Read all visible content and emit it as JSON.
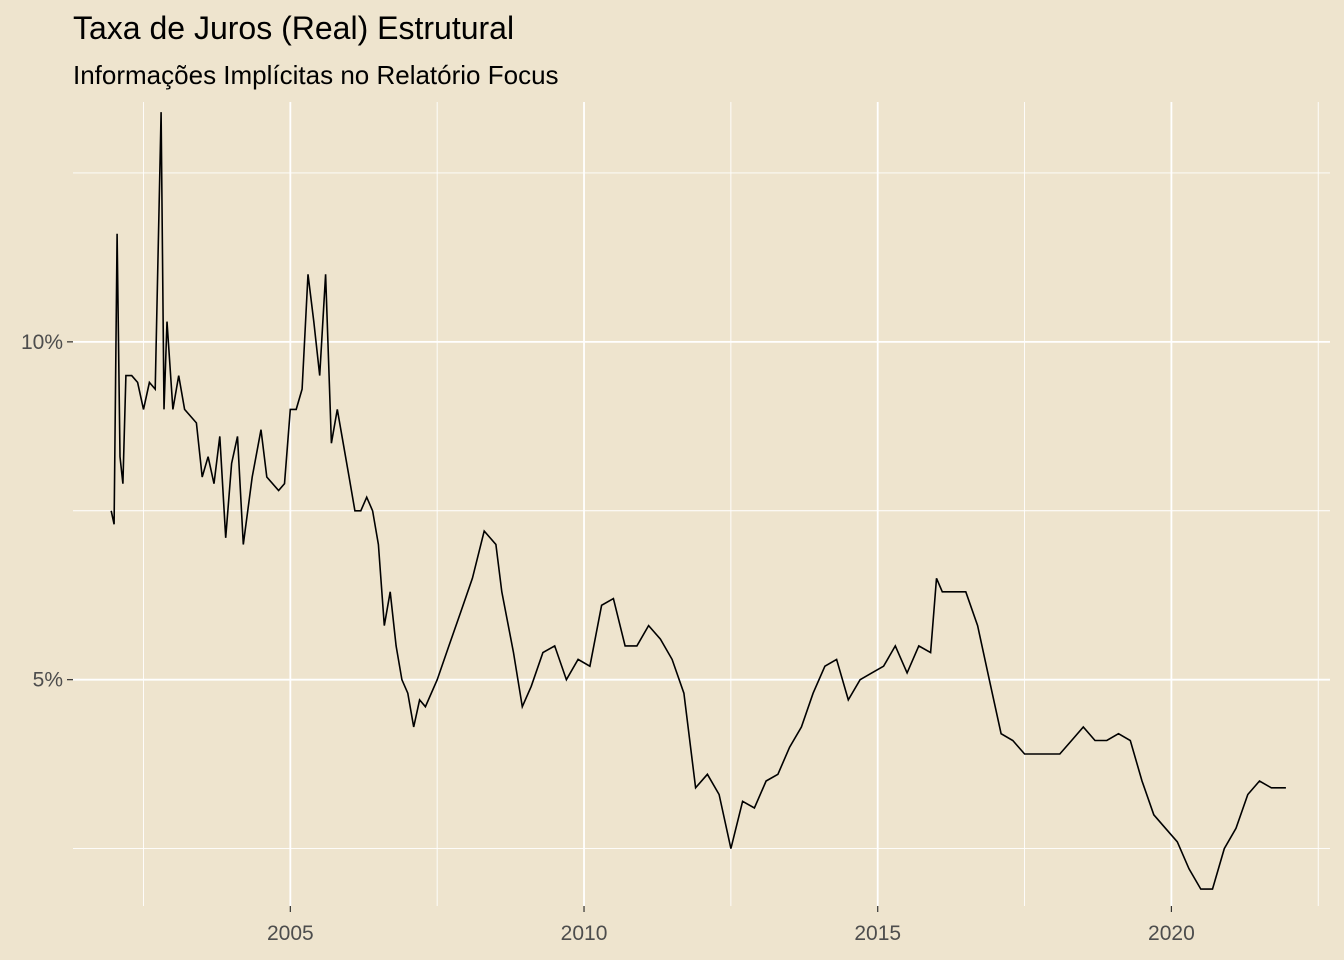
{
  "chart_data": {
    "type": "line",
    "title": "Taxa de Juros (Real) Estrutural",
    "subtitle": "Informações Implícitas no Relatório Focus",
    "xlabel": "",
    "ylabel": "",
    "x_ticks": [
      2005,
      2010,
      2015,
      2020
    ],
    "x_tick_labels": [
      "2005",
      "2010",
      "2015",
      "2020"
    ],
    "y_ticks": [
      5,
      10
    ],
    "y_tick_labels": [
      "5%",
      "10%"
    ],
    "xlim": [
      2001.3,
      2022.7
    ],
    "ylim": [
      1.65,
      13.55
    ],
    "grid": true,
    "legend": "none",
    "colors": {
      "background": "#EEE4CE",
      "grid": "#FFFFFF",
      "line": "#000000",
      "tick_text": "#4D4D4D"
    },
    "series": [
      {
        "x": [
          2001.95,
          2002.0,
          2002.05,
          2002.1,
          2002.15,
          2002.2,
          2002.3,
          2002.4,
          2002.5,
          2002.6,
          2002.7,
          2002.8,
          2002.85,
          2002.9,
          2003.0,
          2003.1,
          2003.2,
          2003.4,
          2003.5,
          2003.6,
          2003.7,
          2003.8,
          2003.9,
          2004.0,
          2004.1,
          2004.2,
          2004.35,
          2004.5,
          2004.6,
          2004.8,
          2004.9,
          2005.0,
          2005.1,
          2005.2,
          2005.3,
          2005.4,
          2005.5,
          2005.6,
          2005.7,
          2005.8,
          2005.9,
          2006.0,
          2006.1,
          2006.2,
          2006.3,
          2006.4,
          2006.5,
          2006.6,
          2006.7,
          2006.8,
          2006.9,
          2007.0,
          2007.1,
          2007.2,
          2007.3,
          2007.5,
          2007.7,
          2007.9,
          2008.1,
          2008.3,
          2008.5,
          2008.6,
          2008.8,
          2008.95,
          2009.1,
          2009.3,
          2009.5,
          2009.7,
          2009.9,
          2010.1,
          2010.3,
          2010.5,
          2010.7,
          2010.9,
          2011.1,
          2011.3,
          2011.5,
          2011.7,
          2011.9,
          2012.1,
          2012.3,
          2012.5,
          2012.7,
          2012.9,
          2013.1,
          2013.3,
          2013.5,
          2013.7,
          2013.9,
          2014.1,
          2014.3,
          2014.5,
          2014.7,
          2014.9,
          2015.1,
          2015.3,
          2015.5,
          2015.7,
          2015.9,
          2016.0,
          2016.1,
          2016.3,
          2016.5,
          2016.7,
          2016.9,
          2017.1,
          2017.3,
          2017.5,
          2017.7,
          2017.9,
          2018.1,
          2018.3,
          2018.5,
          2018.7,
          2018.9,
          2019.1,
          2019.3,
          2019.5,
          2019.7,
          2019.9,
          2020.1,
          2020.3,
          2020.5,
          2020.7,
          2020.9,
          2021.1,
          2021.3,
          2021.5,
          2021.7,
          2021.95
        ],
        "y": [
          7.5,
          7.3,
          11.6,
          8.3,
          7.9,
          9.5,
          9.5,
          9.4,
          9.0,
          9.4,
          9.3,
          13.4,
          9.0,
          10.3,
          9.0,
          9.5,
          9.0,
          8.8,
          8.0,
          8.3,
          7.9,
          8.6,
          7.1,
          8.2,
          8.6,
          7.0,
          8.0,
          8.7,
          8.0,
          7.8,
          7.9,
          9.0,
          9.0,
          9.3,
          11.0,
          10.3,
          9.5,
          11.0,
          8.5,
          9.0,
          8.5,
          8.0,
          7.5,
          7.5,
          7.7,
          7.5,
          7.0,
          5.8,
          6.3,
          5.5,
          5.0,
          4.8,
          4.3,
          4.7,
          4.6,
          5.0,
          5.5,
          6.0,
          6.5,
          7.2,
          7.0,
          6.3,
          5.4,
          4.6,
          4.9,
          5.4,
          5.5,
          5.0,
          5.3,
          5.2,
          6.1,
          6.2,
          5.5,
          5.5,
          5.8,
          5.6,
          5.3,
          4.8,
          3.4,
          3.6,
          3.3,
          2.5,
          3.2,
          3.1,
          3.5,
          3.6,
          4.0,
          4.3,
          4.8,
          5.2,
          5.3,
          4.7,
          5.0,
          5.1,
          5.2,
          5.5,
          5.1,
          5.5,
          5.4,
          6.5,
          6.3,
          6.3,
          6.3,
          5.8,
          5.0,
          4.2,
          4.1,
          3.9,
          3.9,
          3.9,
          3.9,
          4.1,
          4.3,
          4.1,
          4.1,
          4.2,
          4.1,
          3.5,
          3.0,
          2.8,
          2.6,
          2.2,
          1.9,
          1.9,
          2.5,
          2.8,
          3.3,
          3.5,
          3.4,
          3.4
        ]
      }
    ]
  }
}
